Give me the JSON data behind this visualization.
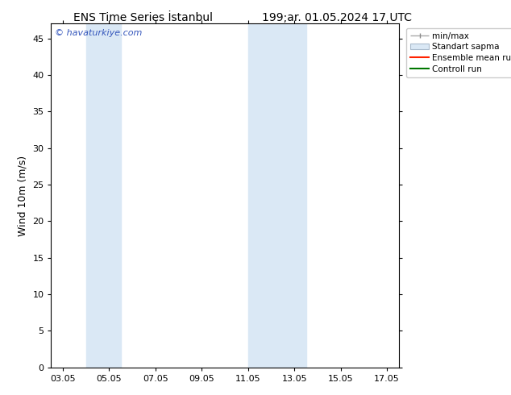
{
  "title_left": "ENS Time Series İstanbul",
  "title_right": "199;ar. 01.05.2024 17 UTC",
  "ylabel": "Wind 10m (m/s)",
  "watermark": "© havaturkiye.com",
  "bg_color": "#ffffff",
  "plot_bg_color": "#ffffff",
  "shaded_bands": [
    {
      "xmin": 4.0,
      "xmax": 5.5,
      "color": "#dae8f5"
    },
    {
      "xmin": 11.0,
      "xmax": 13.5,
      "color": "#dae8f5"
    }
  ],
  "xtick_labels": [
    "03.05",
    "05.05",
    "07.05",
    "09.05",
    "11.05",
    "13.05",
    "15.05",
    "17.05"
  ],
  "xtick_positions": [
    3,
    5,
    7,
    9,
    11,
    13,
    15,
    17
  ],
  "ylim": [
    0,
    47
  ],
  "yticks": [
    0,
    5,
    10,
    15,
    20,
    25,
    30,
    35,
    40,
    45
  ],
  "xlim": [
    2.5,
    17.5
  ],
  "legend_labels": [
    "min/max",
    "Standart sapma",
    "Ensemble mean run",
    "Controll run"
  ],
  "title_fontsize": 10,
  "tick_fontsize": 8,
  "ylabel_fontsize": 9,
  "watermark_color": "#3355bb",
  "watermark_fontsize": 8
}
